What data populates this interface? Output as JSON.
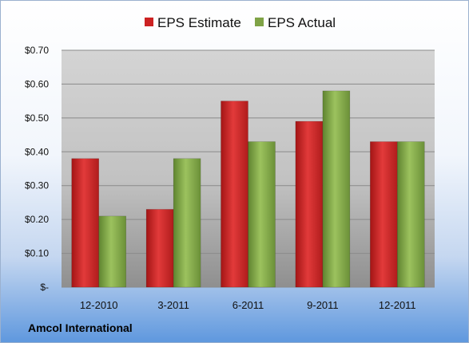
{
  "company": "Amcol International",
  "chart_data": {
    "type": "bar",
    "categories": [
      "12-2010",
      "3-2011",
      "6-2011",
      "9-2011",
      "12-2011"
    ],
    "series": [
      {
        "name": "EPS Estimate",
        "color": "#cc2222",
        "values": [
          0.38,
          0.23,
          0.55,
          0.49,
          0.43
        ]
      },
      {
        "name": "EPS Actual",
        "color": "#7fa346",
        "values": [
          0.21,
          0.38,
          0.43,
          0.58,
          0.43
        ]
      }
    ],
    "yticks": [
      "$-",
      "$0.10",
      "$0.20",
      "$0.30",
      "$0.40",
      "$0.50",
      "$0.60",
      "$0.70"
    ],
    "ylim": [
      0,
      0.7
    ],
    "grid": true,
    "legend": "top-center"
  }
}
